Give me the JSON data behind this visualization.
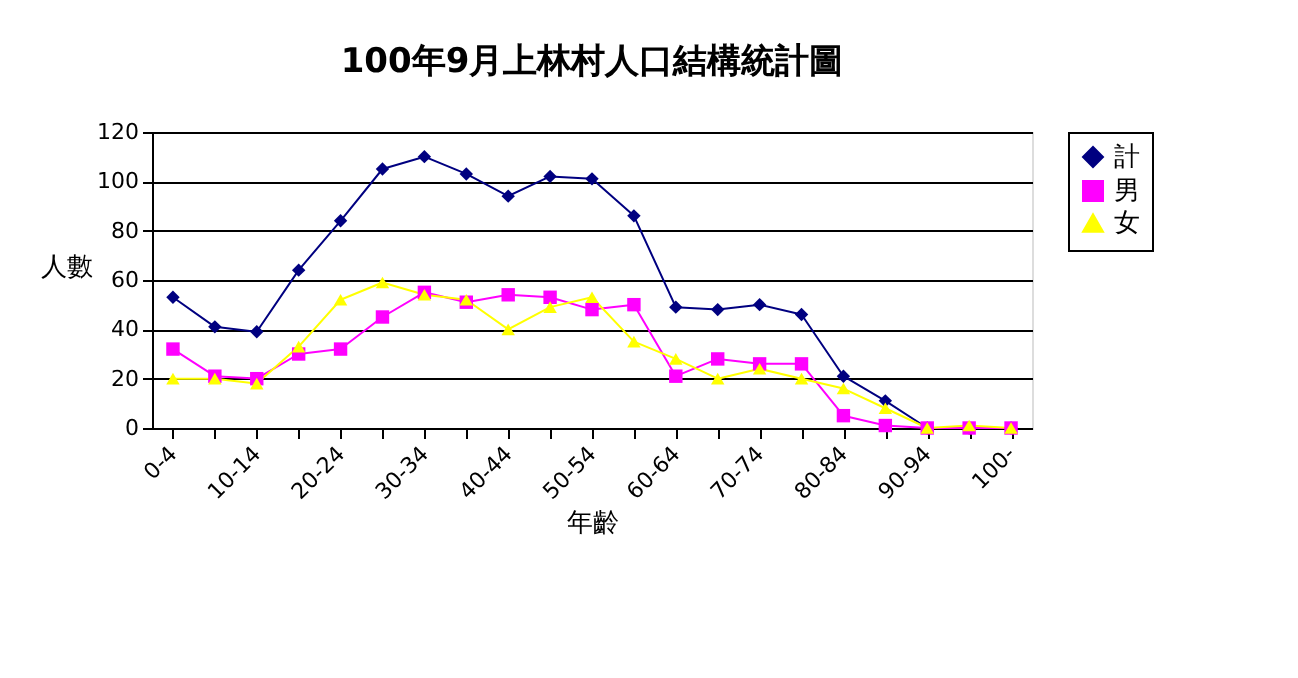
{
  "chart_data": {
    "type": "line",
    "title": "100年9月上林村人口結構統計圖",
    "xlabel": "年齡",
    "ylabel": "人數",
    "categories": [
      "0-4",
      null,
      "10-14",
      null,
      "20-24",
      null,
      "30-34",
      null,
      "40-44",
      null,
      "50-54",
      null,
      "60-64",
      null,
      "70-74",
      null,
      "80-84",
      null,
      "90-94",
      null,
      "100-"
    ],
    "series": [
      {
        "name": "計",
        "color": "#000080",
        "marker": "diamond",
        "values": [
          53,
          41,
          39,
          64,
          84,
          105,
          110,
          103,
          94,
          102,
          101,
          86,
          49,
          48,
          50,
          46,
          21,
          11,
          0,
          0,
          0
        ]
      },
      {
        "name": "男",
        "color": "#ff00ff",
        "marker": "square",
        "values": [
          32,
          21,
          20,
          30,
          32,
          45,
          55,
          51,
          54,
          53,
          48,
          50,
          21,
          28,
          26,
          26,
          5,
          1,
          0,
          0,
          0
        ]
      },
      {
        "name": "女",
        "color": "#ffff00",
        "marker": "triangle",
        "values": [
          20,
          20,
          18,
          33,
          52,
          59,
          54,
          52,
          40,
          49,
          53,
          35,
          28,
          20,
          24,
          20,
          16,
          8,
          0,
          1,
          0
        ]
      }
    ],
    "ylim": [
      0,
      120
    ],
    "yticks": [
      0,
      20,
      40,
      60,
      80,
      100,
      120
    ],
    "grid": "y",
    "legend": "right",
    "line_style": "solid"
  }
}
